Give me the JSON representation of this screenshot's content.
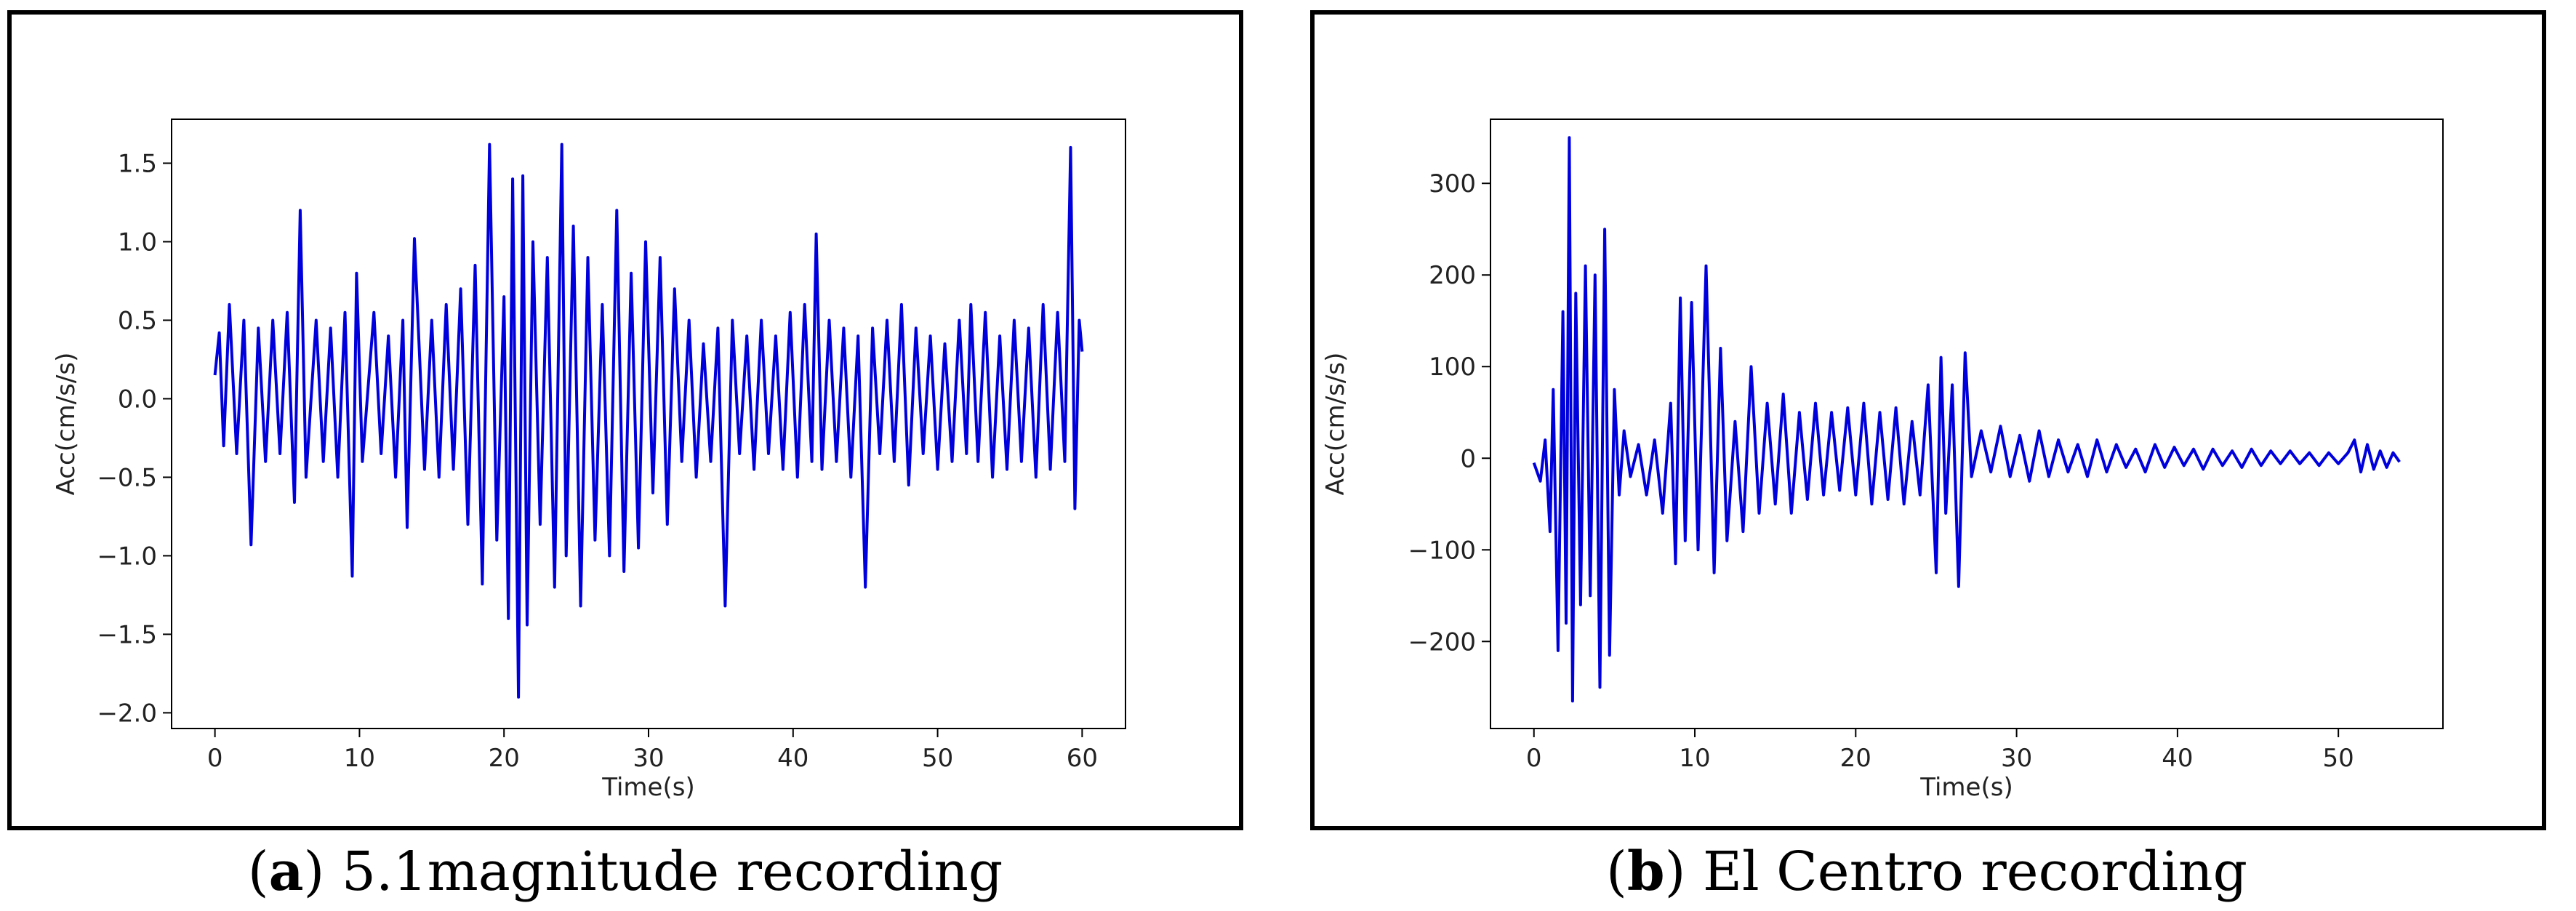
{
  "chart_data": [
    {
      "type": "line",
      "title": "",
      "xlabel": "Time(s)",
      "ylabel": "Acc(cm/s/s)",
      "xlim": [
        -3,
        63
      ],
      "ylim": [
        -2.1,
        1.78
      ],
      "xticks": [
        0,
        10,
        20,
        30,
        40,
        50,
        60
      ],
      "yticks": [
        -2.0,
        -1.5,
        -1.0,
        -0.5,
        0.0,
        0.5,
        1.0,
        1.5
      ],
      "ytick_labels": [
        "−2.0",
        "−1.5",
        "−1.0",
        "−0.5",
        "0.0",
        "0.5",
        "1.0",
        "1.5"
      ],
      "xtick_labels": [
        "0",
        "10",
        "20",
        "30",
        "40",
        "50",
        "60"
      ],
      "grid": false,
      "series": [
        {
          "color": "#0000dd",
          "x": [
            0,
            0.3,
            0.6,
            1.0,
            1.5,
            2.0,
            2.5,
            3.0,
            3.5,
            4.0,
            4.5,
            5.0,
            5.5,
            5.9,
            6.3,
            7.0,
            7.5,
            8.0,
            8.5,
            9.0,
            9.5,
            9.8,
            10.2,
            11.0,
            11.5,
            12.0,
            12.5,
            13.0,
            13.3,
            13.8,
            14.5,
            15.0,
            15.5,
            16.0,
            16.5,
            17.0,
            17.5,
            18.0,
            18.5,
            19.0,
            19.5,
            20.0,
            20.3,
            20.6,
            21.0,
            21.3,
            21.6,
            22.0,
            22.5,
            23.0,
            23.5,
            24.0,
            24.3,
            24.8,
            25.3,
            25.8,
            26.3,
            26.8,
            27.3,
            27.8,
            28.3,
            28.8,
            29.3,
            29.8,
            30.3,
            30.8,
            31.3,
            31.8,
            32.3,
            32.8,
            33.3,
            33.8,
            34.3,
            34.8,
            35.3,
            35.8,
            36.3,
            36.8,
            37.3,
            37.8,
            38.3,
            38.8,
            39.3,
            39.8,
            40.3,
            40.8,
            41.3,
            41.6,
            42.0,
            42.5,
            43.0,
            43.5,
            44.0,
            44.5,
            45.0,
            45.5,
            46.0,
            46.5,
            47.0,
            47.5,
            48.0,
            48.5,
            49.0,
            49.5,
            50.0,
            50.5,
            51.0,
            51.5,
            52.0,
            52.3,
            52.8,
            53.3,
            53.8,
            54.3,
            54.8,
            55.3,
            55.8,
            56.3,
            56.8,
            57.3,
            57.8,
            58.3,
            58.8,
            59.2,
            59.5,
            59.8,
            60.0
          ],
          "values": [
            0.15,
            0.42,
            -0.3,
            0.6,
            -0.35,
            0.5,
            -0.93,
            0.45,
            -0.4,
            0.5,
            -0.35,
            0.55,
            -0.66,
            1.2,
            -0.5,
            0.5,
            -0.4,
            0.45,
            -0.5,
            0.55,
            -1.13,
            0.8,
            -0.4,
            0.55,
            -0.35,
            0.4,
            -0.5,
            0.5,
            -0.82,
            1.02,
            -0.45,
            0.5,
            -0.5,
            0.6,
            -0.45,
            0.7,
            -0.8,
            0.85,
            -1.18,
            1.62,
            -0.9,
            0.65,
            -1.4,
            1.4,
            -1.9,
            1.42,
            -1.44,
            1.0,
            -0.8,
            0.9,
            -1.2,
            1.62,
            -1.0,
            1.1,
            -1.32,
            0.9,
            -0.9,
            0.6,
            -1.0,
            1.2,
            -1.1,
            0.8,
            -0.95,
            1.0,
            -0.6,
            0.9,
            -0.8,
            0.7,
            -0.4,
            0.5,
            -0.5,
            0.35,
            -0.4,
            0.45,
            -1.32,
            0.5,
            -0.35,
            0.4,
            -0.45,
            0.5,
            -0.35,
            0.4,
            -0.45,
            0.55,
            -0.5,
            0.6,
            -0.4,
            1.05,
            -0.45,
            0.5,
            -0.4,
            0.45,
            -0.5,
            0.4,
            -1.2,
            0.45,
            -0.35,
            0.5,
            -0.4,
            0.6,
            -0.55,
            0.45,
            -0.35,
            0.4,
            -0.45,
            0.35,
            -0.4,
            0.5,
            -0.35,
            0.6,
            -0.4,
            0.55,
            -0.5,
            0.4,
            -0.45,
            0.5,
            -0.4,
            0.45,
            -0.5,
            0.6,
            -0.45,
            0.55,
            -0.4,
            1.6,
            -0.7,
            0.5,
            0.3
          ]
        }
      ]
    },
    {
      "type": "line",
      "title": "",
      "xlabel": "Time(s)",
      "ylabel": "Acc(cm/s/s)",
      "xlim": [
        -2.7,
        56.5
      ],
      "ylim": [
        -295,
        370
      ],
      "xticks": [
        0,
        10,
        20,
        30,
        40,
        50
      ],
      "yticks": [
        -200,
        -100,
        0,
        100,
        200,
        300
      ],
      "ytick_labels": [
        "−200",
        "−100",
        "0",
        "100",
        "200",
        "300"
      ],
      "xtick_labels": [
        "0",
        "10",
        "20",
        "30",
        "40",
        "50"
      ],
      "grid": false,
      "series": [
        {
          "color": "#0000dd",
          "x": [
            0,
            0.4,
            0.7,
            1.0,
            1.2,
            1.5,
            1.8,
            2.0,
            2.2,
            2.4,
            2.6,
            2.9,
            3.2,
            3.5,
            3.8,
            4.1,
            4.4,
            4.7,
            5.0,
            5.3,
            5.6,
            6.0,
            6.5,
            7.0,
            7.5,
            8.0,
            8.5,
            8.8,
            9.1,
            9.4,
            9.8,
            10.2,
            10.7,
            11.2,
            11.6,
            12.0,
            12.5,
            13.0,
            13.5,
            14.0,
            14.5,
            15.0,
            15.5,
            16.0,
            16.5,
            17.0,
            17.5,
            18.0,
            18.5,
            19.0,
            19.5,
            20.0,
            20.5,
            21.0,
            21.5,
            22.0,
            22.5,
            23.0,
            23.5,
            24.0,
            24.5,
            25.0,
            25.3,
            25.6,
            26.0,
            26.4,
            26.8,
            27.2,
            27.8,
            28.4,
            29.0,
            29.6,
            30.2,
            30.8,
            31.4,
            32.0,
            32.6,
            33.2,
            33.8,
            34.4,
            35.0,
            35.6,
            36.2,
            36.8,
            37.4,
            38.0,
            38.6,
            39.2,
            39.8,
            40.4,
            41.0,
            41.6,
            42.2,
            42.8,
            43.4,
            44.0,
            44.6,
            45.2,
            45.8,
            46.4,
            47.0,
            47.6,
            48.2,
            48.8,
            49.4,
            50.0,
            50.6,
            51.0,
            51.4,
            51.8,
            52.2,
            52.6,
            53.0,
            53.4,
            53.8
          ],
          "values": [
            -5,
            -25,
            20,
            -80,
            75,
            -210,
            160,
            -180,
            350,
            -265,
            180,
            -160,
            210,
            -150,
            200,
            -250,
            250,
            -215,
            75,
            -40,
            30,
            -20,
            15,
            -40,
            20,
            -60,
            60,
            -115,
            175,
            -90,
            170,
            -100,
            210,
            -125,
            120,
            -90,
            40,
            -80,
            100,
            -60,
            60,
            -50,
            70,
            -60,
            50,
            -45,
            60,
            -40,
            50,
            -35,
            55,
            -40,
            60,
            -50,
            50,
            -45,
            55,
            -50,
            40,
            -40,
            80,
            -125,
            110,
            -60,
            80,
            -140,
            115,
            -20,
            30,
            -15,
            35,
            -20,
            25,
            -25,
            30,
            -20,
            20,
            -15,
            15,
            -20,
            20,
            -15,
            15,
            -10,
            10,
            -15,
            15,
            -10,
            12,
            -8,
            10,
            -12,
            10,
            -8,
            8,
            -10,
            10,
            -8,
            8,
            -6,
            8,
            -6,
            6,
            -8,
            6,
            -6,
            6,
            20,
            -15,
            15,
            -12,
            8,
            -10,
            6,
            -4
          ]
        }
      ]
    }
  ],
  "captions": [
    {
      "letter": "a",
      "text": ") 5.1magnitude recording"
    },
    {
      "letter": "b",
      "text": ") El Centro recording"
    }
  ]
}
